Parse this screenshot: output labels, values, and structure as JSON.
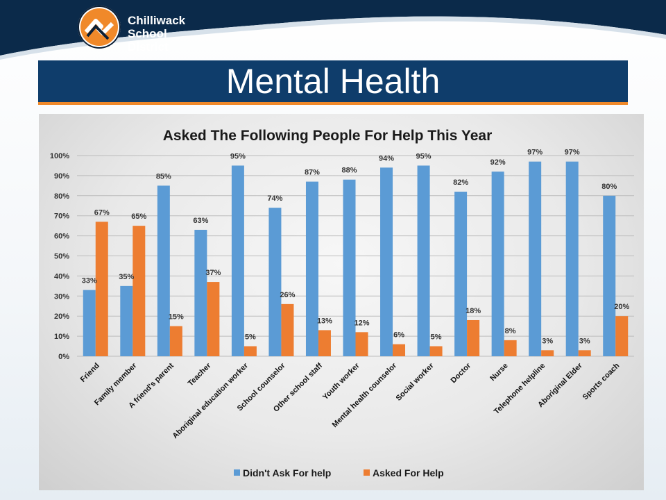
{
  "header": {
    "logo_line1": "Chilliwack",
    "logo_line2": "School District",
    "band_color": "#0b2a4a",
    "accent_color": "#f0892a"
  },
  "page_title": "Mental Health",
  "chart_data": {
    "type": "bar",
    "title": "Asked The Following People For Help This Year",
    "xlabel": "",
    "ylabel": "",
    "ylim": [
      0,
      100
    ],
    "yticks": [
      "0%",
      "10%",
      "20%",
      "30%",
      "40%",
      "50%",
      "60%",
      "70%",
      "80%",
      "90%",
      "100%"
    ],
    "grid": true,
    "legend_position": "bottom",
    "categories": [
      "Friend",
      "Family member",
      "A friend's parent",
      "Teacher",
      "Aboriginal education worker",
      "School counselor",
      "Other school staff",
      "Youth worker",
      "Mental health counselor",
      "Social worker",
      "Doctor",
      "Nurse",
      "Telephone helpline",
      "Aboriginal Elder",
      "Sports coach"
    ],
    "series": [
      {
        "name": "Didn't Ask For help",
        "color": "#5b9bd5",
        "values": [
          33,
          35,
          85,
          63,
          95,
          74,
          87,
          88,
          94,
          95,
          82,
          92,
          97,
          97,
          80
        ]
      },
      {
        "name": "Asked For Help",
        "color": "#ed7d31",
        "values": [
          67,
          65,
          15,
          37,
          5,
          26,
          13,
          12,
          6,
          5,
          18,
          8,
          3,
          3,
          20
        ]
      }
    ]
  }
}
